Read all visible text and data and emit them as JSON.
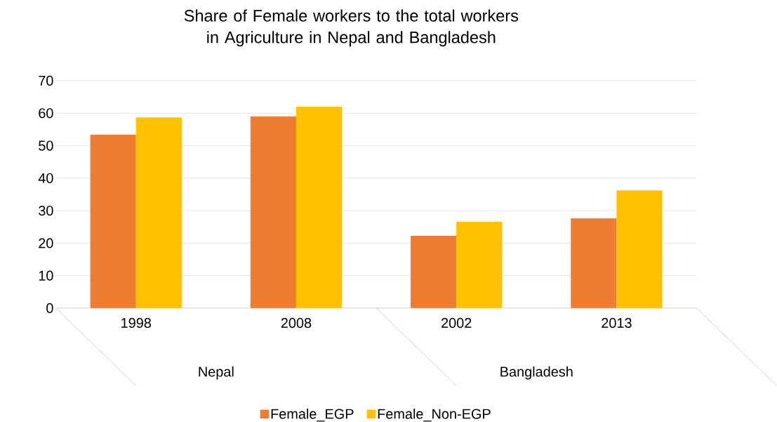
{
  "chart_data": {
    "type": "bar",
    "title": "Share of Female workers to the total workers in Agriculture in Nepal and Bangladesh",
    "categories": [
      "1998",
      "2008",
      "2002",
      "2013"
    ],
    "series": [
      {
        "name": "Female_EGP",
        "color": "#ed7d31",
        "values": [
          53.4,
          59.0,
          22.3,
          27.6
        ]
      },
      {
        "name": "Female_Non-EGP",
        "color": "#ffc000",
        "values": [
          58.7,
          62.0,
          26.6,
          36.2
        ]
      }
    ],
    "annotations": [
      "Nepal",
      "Bangladesh"
    ],
    "ylim": [
      0,
      70
    ],
    "yticks": [
      0,
      10,
      20,
      30,
      40,
      50,
      60,
      70
    ],
    "grid": "y",
    "legend": "bottom"
  }
}
